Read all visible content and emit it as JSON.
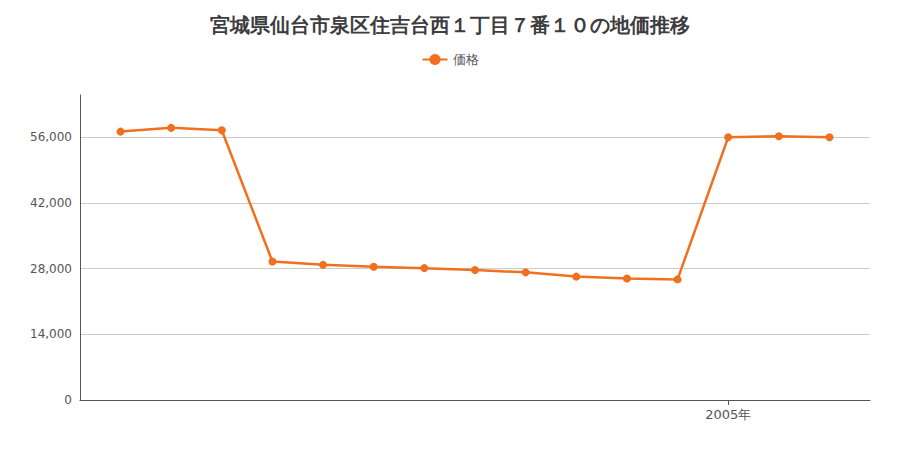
{
  "chart_data": {
    "type": "line",
    "title": "宮城県仙台市泉区住吉台西１丁目７番１０の地価推移",
    "x": [
      1993,
      1994,
      1995,
      1996,
      1997,
      1998,
      1999,
      2000,
      2001,
      2002,
      2003,
      2004,
      2005,
      2006,
      2007
    ],
    "series": [
      {
        "name": "価格",
        "color": "#f07020",
        "marker": "circle",
        "values": [
          57200,
          58000,
          57500,
          29500,
          28800,
          28400,
          28100,
          27700,
          27200,
          26300,
          25900,
          25700,
          56000,
          56200,
          56000
        ]
      }
    ],
    "xlim": [
      1992.2,
      2007.8
    ],
    "xticks": [
      {
        "value": 2005,
        "label": "2005年"
      }
    ],
    "ylim": [
      0,
      65000
    ],
    "yticks": [
      0,
      {
        "value": 14000,
        "label": "14,000"
      },
      {
        "value": 28000,
        "label": "28,000"
      },
      {
        "value": 42000,
        "label": "42,000"
      },
      {
        "value": 56000,
        "label": "56,000"
      }
    ],
    "grid": "y",
    "legend": "top"
  }
}
